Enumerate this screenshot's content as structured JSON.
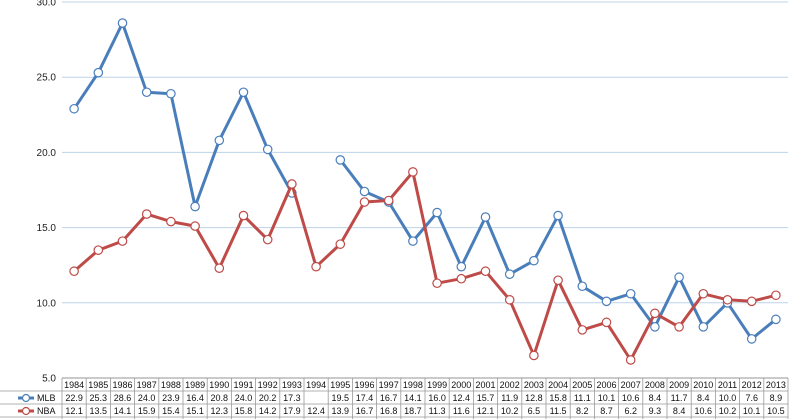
{
  "chart_data": {
    "type": "line",
    "title": "",
    "xlabel": "",
    "ylabel": "",
    "ylim": [
      5,
      30
    ],
    "yticks": [
      "5.0",
      "10.0",
      "15.0",
      "20.0",
      "25.0",
      "30.0"
    ],
    "grid": true,
    "legend": "bottom-left data table",
    "categories": [
      "1984",
      "1985",
      "1986",
      "1987",
      "1988",
      "1989",
      "1990",
      "1991",
      "1992",
      "1993",
      "1994",
      "1995",
      "1996",
      "1997",
      "1998",
      "1999",
      "2000",
      "2001",
      "2002",
      "2003",
      "2004",
      "2005",
      "2006",
      "2007",
      "2008",
      "2009",
      "2010",
      "2011",
      "2012",
      "2013"
    ],
    "series": [
      {
        "name": "MLB",
        "color": "#4a7ebb",
        "values": [
          22.9,
          25.3,
          28.6,
          24.0,
          23.9,
          16.4,
          20.8,
          24.0,
          20.2,
          17.3,
          null,
          19.5,
          17.4,
          16.7,
          14.1,
          16.0,
          12.4,
          15.7,
          11.9,
          12.8,
          15.8,
          11.1,
          10.1,
          10.6,
          8.4,
          11.7,
          8.4,
          10.0,
          7.6,
          8.9
        ]
      },
      {
        "name": "NBA",
        "color": "#be4b48",
        "values": [
          12.1,
          13.5,
          14.1,
          15.9,
          15.4,
          15.1,
          12.3,
          15.8,
          14.2,
          17.9,
          12.4,
          13.9,
          16.7,
          16.8,
          18.7,
          11.3,
          11.6,
          12.1,
          10.2,
          6.5,
          11.5,
          8.2,
          8.7,
          6.2,
          9.3,
          8.4,
          10.6,
          10.2,
          10.1,
          10.5
        ]
      }
    ]
  }
}
